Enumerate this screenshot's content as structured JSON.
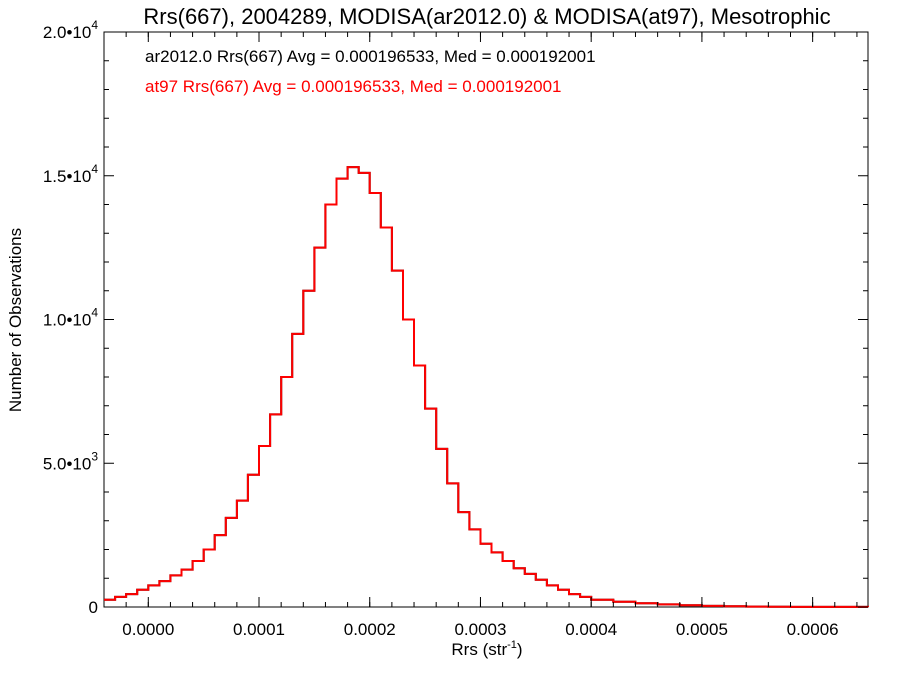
{
  "chart_data": {
    "type": "line",
    "title": "Rrs(667), 2004289, MODISA(ar2012.0) & MODISA(at97), Mesotrophic",
    "xlabel": "Rrs (str",
    "xlabel_sup": "-1",
    "xlabel_close": ")",
    "ylabel": "Number of Observations",
    "xlim": [
      -4e-05,
      0.00065
    ],
    "ylim": [
      0,
      20000
    ],
    "grid": false,
    "x_ticks": [
      {
        "value": 0.0,
        "label": "0.0000"
      },
      {
        "value": 0.0001,
        "label": "0.0001"
      },
      {
        "value": 0.0002,
        "label": "0.0002"
      },
      {
        "value": 0.0003,
        "label": "0.0003"
      },
      {
        "value": 0.0004,
        "label": "0.0004"
      },
      {
        "value": 0.0005,
        "label": "0.0005"
      },
      {
        "value": 0.0006,
        "label": "0.0006"
      }
    ],
    "y_ticks": [
      {
        "value": 0,
        "mant": "0",
        "exp": ""
      },
      {
        "value": 5000,
        "mant": "5.0•10",
        "exp": "3"
      },
      {
        "value": 10000,
        "mant": "1.0•10",
        "exp": "4"
      },
      {
        "value": 15000,
        "mant": "1.5•10",
        "exp": "4"
      },
      {
        "value": 20000,
        "mant": "2.0•10",
        "exp": "4"
      }
    ],
    "annotations": [
      {
        "text": "ar2012.0 Rrs(667) Avg = 0.000196533, Med = 0.000192001",
        "color": "#000000"
      },
      {
        "text": "at97 Rrs(667) Avg = 0.000196533, Med = 0.000192001",
        "color": "#ff0000"
      }
    ],
    "series": [
      {
        "color": "#000000",
        "style": "step",
        "x": [
          -4e-05,
          -3e-05,
          -2e-05,
          -1e-05,
          0.0,
          1e-05,
          2e-05,
          3e-05,
          4e-05,
          5e-05,
          6e-05,
          7e-05,
          8e-05,
          9e-05,
          0.0001,
          0.00011,
          0.00012,
          0.00013,
          0.00014,
          0.00015,
          0.00016,
          0.00017,
          0.00018,
          0.00019,
          0.0002,
          0.00021,
          0.00022,
          0.00023,
          0.00024,
          0.00025,
          0.00026,
          0.00027,
          0.00028,
          0.00029,
          0.0003,
          0.00031,
          0.00032,
          0.00033,
          0.00034,
          0.00035,
          0.00036,
          0.00037,
          0.00038,
          0.00039,
          0.0004,
          0.00042,
          0.00044,
          0.00046,
          0.00048,
          0.0005,
          0.00052,
          0.00054,
          0.00056,
          0.00058,
          0.0006,
          0.00062,
          0.00065
        ],
        "y": [
          250,
          350,
          450,
          600,
          750,
          900,
          1100,
          1300,
          1600,
          2000,
          2500,
          3100,
          3700,
          4600,
          5600,
          6700,
          8000,
          9500,
          11000,
          12500,
          14000,
          14900,
          15300,
          15100,
          14400,
          13200,
          11700,
          10000,
          8400,
          6900,
          5500,
          4300,
          3300,
          2700,
          2200,
          1900,
          1600,
          1350,
          1150,
          950,
          750,
          600,
          450,
          350,
          250,
          180,
          130,
          90,
          60,
          40,
          25,
          15,
          10,
          5,
          3,
          2,
          1
        ]
      },
      {
        "color": "#ff0000",
        "style": "step",
        "x": [
          -4e-05,
          -3e-05,
          -2e-05,
          -1e-05,
          0.0,
          1e-05,
          2e-05,
          3e-05,
          4e-05,
          5e-05,
          6e-05,
          7e-05,
          8e-05,
          9e-05,
          0.0001,
          0.00011,
          0.00012,
          0.00013,
          0.00014,
          0.00015,
          0.00016,
          0.00017,
          0.00018,
          0.00019,
          0.0002,
          0.00021,
          0.00022,
          0.00023,
          0.00024,
          0.00025,
          0.00026,
          0.00027,
          0.00028,
          0.00029,
          0.0003,
          0.00031,
          0.00032,
          0.00033,
          0.00034,
          0.00035,
          0.00036,
          0.00037,
          0.00038,
          0.00039,
          0.0004,
          0.00042,
          0.00044,
          0.00046,
          0.00048,
          0.0005,
          0.00052,
          0.00054,
          0.00056,
          0.00058,
          0.0006,
          0.00062,
          0.00065
        ],
        "y": [
          250,
          350,
          450,
          600,
          750,
          900,
          1100,
          1300,
          1600,
          2000,
          2500,
          3100,
          3700,
          4600,
          5600,
          6700,
          8000,
          9500,
          11000,
          12500,
          14000,
          14900,
          15300,
          15100,
          14400,
          13200,
          11700,
          10000,
          8400,
          6900,
          5500,
          4300,
          3300,
          2700,
          2200,
          1900,
          1600,
          1350,
          1150,
          950,
          750,
          600,
          450,
          350,
          250,
          180,
          130,
          90,
          60,
          40,
          25,
          15,
          10,
          5,
          3,
          2,
          1
        ]
      }
    ]
  }
}
